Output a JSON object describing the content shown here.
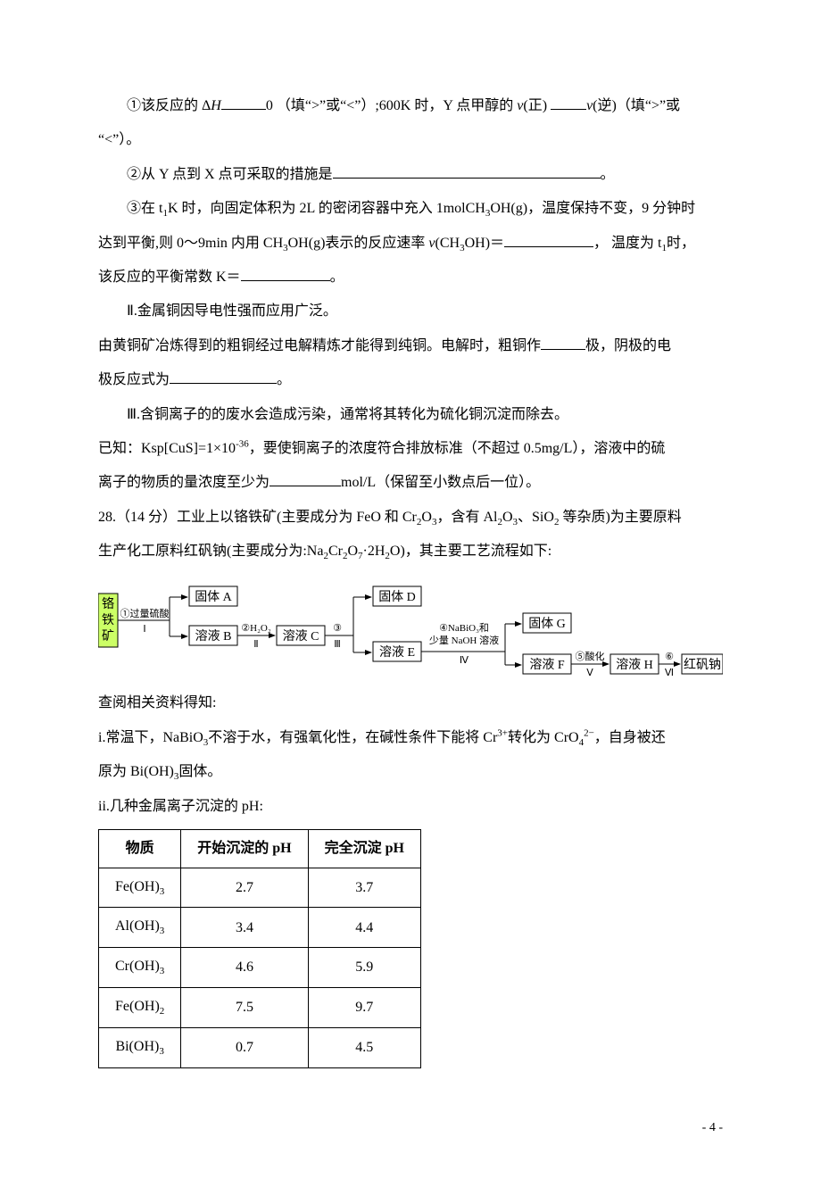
{
  "q27_I": {
    "line1_a": "①该反应的 Δ",
    "italic_H": "H",
    "line1_b": "0 （填“>”或“<”）;600K 时，Y 点甲醇的 ",
    "italic_v1": "v",
    "line1_c": "(正) ",
    "italic_v2": "v",
    "line1_d": "(逆)（填“>”或",
    "line2": "“<”）。",
    "line3_a": "②从 Y 点到 X 点可采取的措施是",
    "line3_b": "。",
    "line4_a": "③在 t",
    "sub1": "1",
    "line4_b": "K 时，向固定体积为 2L 的密闭容器中充入 1molCH",
    "sub3a": "3",
    "line4_c": "OH(g)，温度保持不变，9 分钟时",
    "line5_a": "达到平衡,则 0～9min 内用 CH",
    "sub3b": "3",
    "line5_b": "OH(g)表示的反应速率 ",
    "italic_v3": "v",
    "line5_c": "(CH",
    "sub3c": "3",
    "line5_d": "OH)＝",
    "line5_e": "， 温度为 t",
    "sub1b": "1",
    "line5_f": "时，",
    "line6_a": "该反应的平衡常数 K＝",
    "line6_b": "。"
  },
  "q27_II": {
    "title": "Ⅱ.金属铜因导电性强而应用广泛。",
    "line1_a": "由黄铜矿冶炼得到的粗铜经过电解精炼才能得到纯铜。电解时，粗铜作",
    "line1_b": "极，阴极的电",
    "line2_a": "极反应式为",
    "line2_b": "。"
  },
  "q27_III": {
    "title": "Ⅲ.含铜离子的的废水会造成污染，通常将其转化为硫化铜沉淀而除去。",
    "line1_a": "已知：Ksp[CuS]=1×10",
    "sup_neg36": "-36",
    "line1_b": "，要使铜离子的浓度符合排放标准（不超过 0.5mg/L），溶液中的硫",
    "line2_a": "离子的物质的量浓度至少为",
    "line2_b": "mol/L（保留至小数点后一位）。"
  },
  "q28": {
    "stem_a": "28.（14 分）工业上以铬铁矿(主要成分为 FeO 和 Cr",
    "sub2a": "2",
    "stem_b": "O",
    "sub3a": "3",
    "stem_c": "，含有 Al",
    "sub2b": "2",
    "stem_d": "O",
    "sub3b": "3",
    "stem_e": "、SiO",
    "sub2c": "2",
    "stem_f": " 等杂质)为主要原料",
    "stem2_a": "生产化工原料红矾钠(主要成分为:Na",
    "sub2d": "2",
    "stem2_b": "Cr",
    "sub2e": "2",
    "stem2_c": "O",
    "sub7": "7",
    "stem2_d": "·2H",
    "sub2f": "2",
    "stem2_e": "O)，其主要工艺流程如下:"
  },
  "flow": {
    "box_ore_l1": "铬",
    "box_ore_l2": "铁",
    "box_ore_l3": "矿",
    "step1_top": "①过量硫酸",
    "step1_bot": "Ⅰ",
    "box_A": "固体 A",
    "box_B": "溶液 B",
    "step2_top": "②H₂O₂",
    "step2_bot": "Ⅱ",
    "box_C": "溶液 C",
    "step3_top": "③",
    "step3_bot": "Ⅲ",
    "box_D": "固体 D",
    "box_E": "溶液 E",
    "step4_top": "④NaBiO₃和",
    "step4_mid": "少量 NaOH 溶液",
    "step4_bot": "Ⅳ",
    "box_G": "固体 G",
    "box_F": "溶液 F",
    "step5_top": "⑤酸化",
    "step5_bot": "Ⅴ",
    "box_H": "溶液 H",
    "step6_top": "⑥",
    "step6_bot": "Ⅵ",
    "box_red": "红矾钠",
    "fill_white": "#ffffff",
    "fill_lime": "#ccff66",
    "fill_red": "#cc0000",
    "text_red": "#cc0000",
    "stroke": "#000000"
  },
  "post_flow": {
    "lookup": "查阅相关资料得知:",
    "i_a": "i.常温下，NaBiO",
    "sub3": "3",
    "i_b": "不溶于水，有强氧化性，在碱性条件下能将 Cr",
    "sup3p": "3+",
    "i_c": "转化为 CrO",
    "sub4": "4",
    "sup2m": "2−",
    "i_d": "，自身被还",
    "i_line2_a": "原为 Bi(OH)",
    "i_line2_b": "固体。",
    "ii": "ii.几种金属离子沉淀的 pH:"
  },
  "ph_table": {
    "columns": [
      "物质",
      "开始沉淀的 pH",
      "完全沉淀 pH"
    ],
    "rows": [
      {
        "species_pre": "Fe(OH)",
        "species_sub": "3",
        "start": "2.7",
        "end": "3.7"
      },
      {
        "species_pre": "Al(OH)",
        "species_sub": "3",
        "start": "3.4",
        "end": "4.4"
      },
      {
        "species_pre": "Cr(OH)",
        "species_sub": "3",
        "start": "4.6",
        "end": "5.9"
      },
      {
        "species_pre": "Fe(OH)",
        "species_sub": "2",
        "start": "7.5",
        "end": "9.7"
      },
      {
        "species_pre": "Bi(OH)",
        "species_sub": "3",
        "start": "0.7",
        "end": "4.5"
      }
    ]
  },
  "page_number": "- 4 -"
}
